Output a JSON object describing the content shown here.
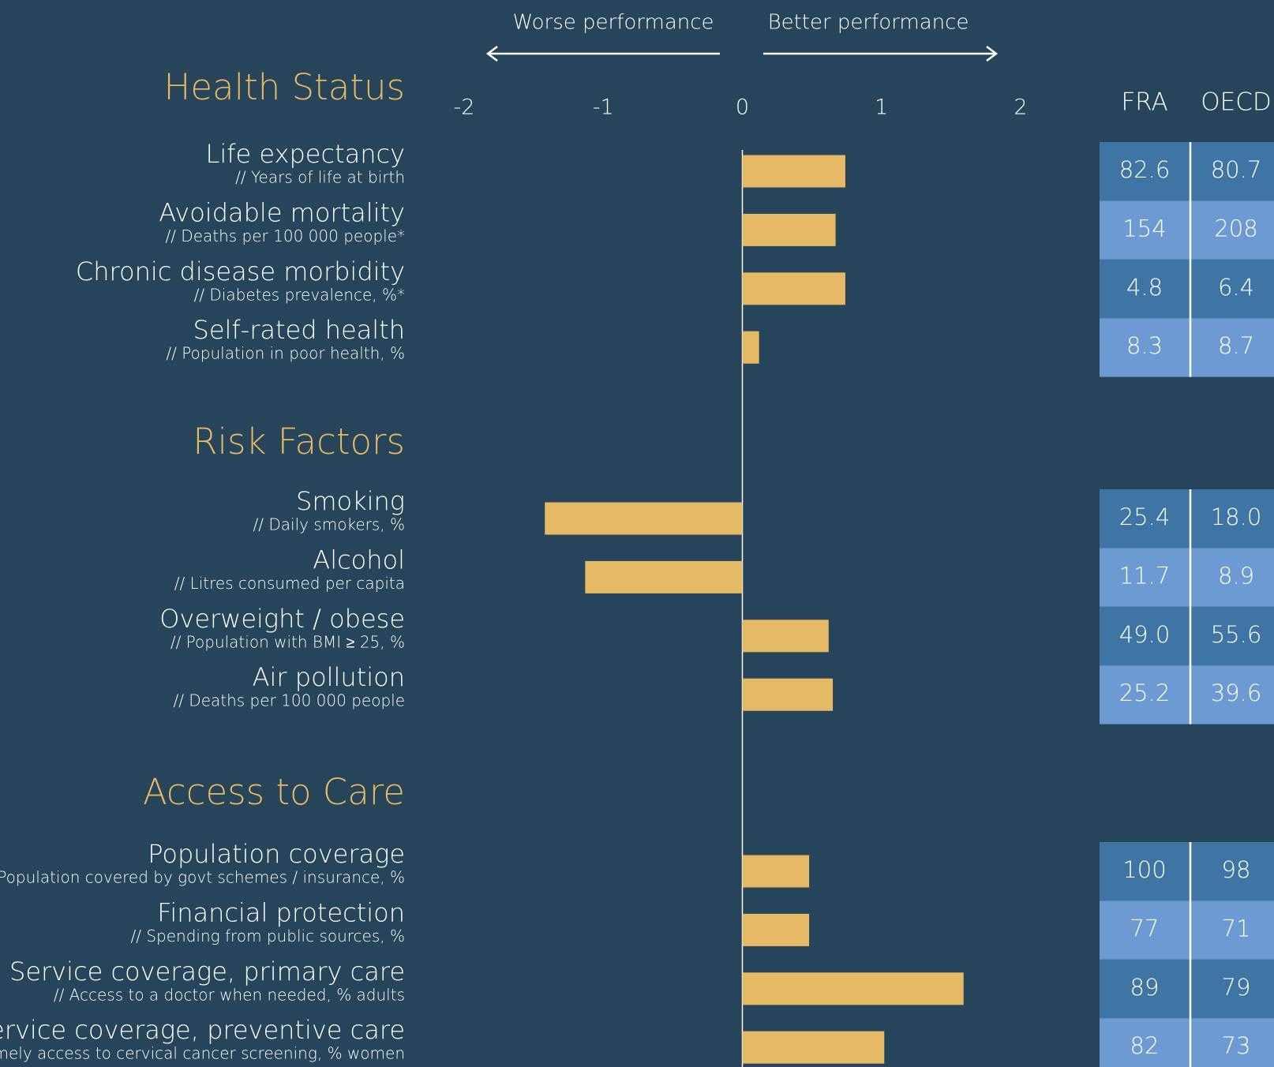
{
  "chart_data": {
    "type": "bar",
    "annotations": [
      "Worse performance",
      "Better performance"
    ],
    "xlim": [
      -2,
      2
    ],
    "xticks": [
      -2,
      -1,
      0,
      1,
      2
    ],
    "color": "#e6b966",
    "table_headers": [
      "FRA",
      "OECD"
    ],
    "groups": [
      {
        "title": "Health Status",
        "categories": [
          "Life expectancy",
          "Avoidable mortality",
          "Chronic disease morbidity",
          "Self-rated health"
        ],
        "subtitles": [
          "// Years of life at birth",
          "// Deaths per 100 000 people*",
          "// Diabetes prevalence, %*",
          "// Population in poor health, %"
        ],
        "values": [
          0.74,
          0.67,
          0.74,
          0.12
        ],
        "table": [
          [
            "82.6",
            "80.7"
          ],
          [
            "154",
            "208"
          ],
          [
            "4.8",
            "6.4"
          ],
          [
            "8.3",
            "8.7"
          ]
        ]
      },
      {
        "title": "Risk Factors",
        "categories": [
          "Smoking",
          "Alcohol",
          "Overweight / obese",
          "Air pollution"
        ],
        "subtitles": [
          "// Daily smokers, %",
          "// Litres consumed per capita",
          "// Population with BMI ≥ 25, %",
          "// Deaths per 100 000 people"
        ],
        "values": [
          -1.42,
          -1.13,
          0.62,
          0.65
        ],
        "table": [
          [
            "25.4",
            "18.0"
          ],
          [
            "11.7",
            "8.9"
          ],
          [
            "49.0",
            "55.6"
          ],
          [
            "25.2",
            "39.6"
          ]
        ]
      },
      {
        "title": "Access to Care",
        "categories": [
          "Population coverage",
          "Financial protection",
          "Service coverage, primary care",
          "Service coverage, preventive care"
        ],
        "subtitles": [
          "// Population covered by govt schemes / insurance, %",
          "// Spending from public sources, %",
          "// Access to a doctor when needed, % adults",
          "// Timely access to cervical cancer screening, % women"
        ],
        "values": [
          0.48,
          0.48,
          1.59,
          1.02
        ],
        "table": [
          [
            "100",
            "98"
          ],
          [
            "77",
            "71"
          ],
          [
            "89",
            "79"
          ],
          [
            "82",
            "73"
          ]
        ]
      }
    ]
  }
}
